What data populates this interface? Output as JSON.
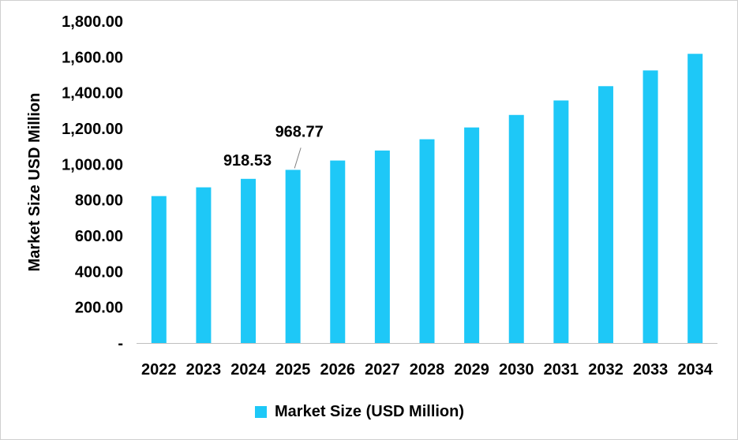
{
  "chart_data": {
    "type": "bar",
    "title": "",
    "xlabel": "",
    "ylabel": "Market Size USD Million",
    "categories": [
      "2022",
      "2023",
      "2024",
      "2025",
      "2026",
      "2027",
      "2028",
      "2029",
      "2030",
      "2031",
      "2032",
      "2033",
      "2034"
    ],
    "series": [
      {
        "name": "Market Size (USD Million)",
        "values": [
          822,
          871,
          918.53,
          968.77,
          1021,
          1077,
          1140,
          1206,
          1276,
          1357,
          1437,
          1525,
          1618
        ]
      }
    ],
    "ylim": [
      0,
      1800
    ],
    "yticks": [
      0,
      200,
      400,
      600,
      800,
      1000,
      1200,
      1400,
      1600,
      1800
    ],
    "ytick_labels": [
      "-",
      "200.00",
      "400.00",
      "600.00",
      "800.00",
      "1,000.00",
      "1,200.00",
      "1,400.00",
      "1,600.00",
      "1,800.00"
    ],
    "data_labels": [
      {
        "category": "2024",
        "text": "918.53"
      },
      {
        "category": "2025",
        "text": "968.77"
      }
    ],
    "bar_color": "#1ec8f7",
    "grid": false,
    "legend_position": "bottom"
  }
}
